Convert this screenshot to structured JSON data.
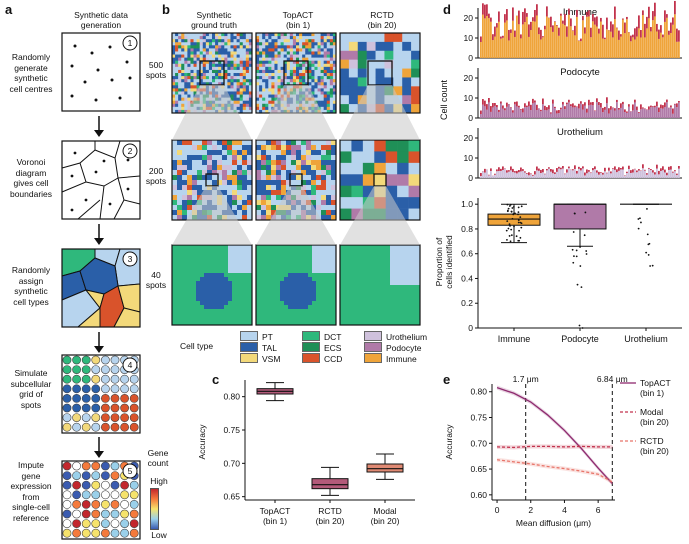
{
  "panels": {
    "a": "a",
    "b": "b",
    "c": "c",
    "d": "d",
    "e": "e"
  },
  "colors": {
    "PT": "#b7d4ee",
    "TAL": "#2a5fa8",
    "VSM": "#f3d97a",
    "DCT": "#2fb87c",
    "ECS": "#1f8f57",
    "CCD": "#d9532b",
    "Urothelium": "#cfc1dc",
    "Podocyte": "#b07aa8",
    "Immune": "#efa43a"
  },
  "a": {
    "header": "Synthetic data\ngeneration",
    "steps": [
      {
        "num": "1",
        "label": "Randomly\ngenerate\nsynthetic\ncell centres"
      },
      {
        "num": "2",
        "label": "Voronoi\ndiagram\ngives cell\nboundaries"
      },
      {
        "num": "3",
        "label": "Randomly\nassign\nsynthetic\ncell types"
      },
      {
        "num": "4",
        "label": "Simulate\nsubcellular\ngrid of\nspots"
      },
      {
        "num": "5",
        "label": "Impute\ngene\nexpression\nfrom\nsingle-cell\nreference"
      }
    ],
    "gene_count_label": "Gene\ncount",
    "high": "High",
    "low": "Low"
  },
  "b": {
    "columns": [
      "Synthetic\nground truth",
      "TopACT\n(bin 1)",
      "RCTD\n(bin 20)"
    ],
    "rows": [
      "500\nspots",
      "200\nspots",
      "40\nspots"
    ],
    "legend_title": "Cell type",
    "legend": [
      {
        "name": "PT",
        "color": "#b7d4ee"
      },
      {
        "name": "TAL",
        "color": "#2a5fa8"
      },
      {
        "name": "VSM",
        "color": "#f3d97a"
      },
      {
        "name": "DCT",
        "color": "#2fb87c"
      },
      {
        "name": "ECS",
        "color": "#1f8f57"
      },
      {
        "name": "CCD",
        "color": "#d9532b"
      },
      {
        "name": "Urothelium",
        "color": "#cfc1dc"
      },
      {
        "name": "Podocyte",
        "color": "#b07aa8"
      },
      {
        "name": "Immune",
        "color": "#efa43a"
      }
    ]
  },
  "chart_data": [
    {
      "id": "c",
      "type": "box",
      "ylabel": "Accuracy",
      "ylim": [
        0.645,
        0.825
      ],
      "yticks": [
        "0.80",
        "0.75",
        "0.70",
        "0.65"
      ],
      "categories": [
        "TopACT\n(bin 1)",
        "RCTD\n(bin 20)",
        "Modal\n(bin 20)"
      ],
      "boxes": [
        {
          "min": 0.794,
          "q1": 0.804,
          "median": 0.808,
          "q3": 0.812,
          "max": 0.821,
          "color": "#b35a7a"
        },
        {
          "min": 0.652,
          "q1": 0.662,
          "median": 0.668,
          "q3": 0.677,
          "max": 0.694,
          "color": "#b35a7a"
        },
        {
          "min": 0.676,
          "q1": 0.687,
          "median": 0.692,
          "q3": 0.699,
          "max": 0.714,
          "color": "#e08a74"
        }
      ]
    },
    {
      "id": "d-hist",
      "type": "bar",
      "ylabel": "Cell count",
      "series": [
        {
          "name": "Immune",
          "ylim": [
            0,
            25
          ],
          "yticks": [
            "20",
            "10",
            "0"
          ]
        },
        {
          "name": "Podocyte",
          "ylim": [
            0,
            25
          ],
          "yticks": [
            "20",
            "10",
            "0"
          ]
        },
        {
          "name": "Urothelium",
          "ylim": [
            0,
            25
          ],
          "yticks": [
            "20",
            "10",
            "0"
          ]
        }
      ]
    },
    {
      "id": "d-box",
      "type": "box",
      "ylabel": "Proportion of\ncells identified",
      "ylim": [
        0,
        1.05
      ],
      "yticks": [
        "1.0",
        "0.8",
        "0.6",
        "0.4",
        "0.2",
        "0"
      ],
      "categories": [
        "Immune",
        "Podocyte",
        "Urothelium"
      ],
      "boxes": [
        {
          "min": 0.69,
          "q1": 0.83,
          "median": 0.88,
          "q3": 0.92,
          "max": 1.0,
          "color": "#efa43a"
        },
        {
          "min": 0.66,
          "q1": 0.8,
          "median": 1.0,
          "q3": 1.0,
          "max": 1.0,
          "color": "#b07aa8"
        },
        {
          "min": 1.0,
          "q1": 1.0,
          "median": 1.0,
          "q3": 1.0,
          "max": 1.0,
          "color": "#cfc1dc"
        }
      ]
    },
    {
      "id": "e",
      "type": "line",
      "xlabel": "Mean diffusion (μm)",
      "ylabel": "Accuracy",
      "xlim": [
        -0.3,
        7.0
      ],
      "ylim": [
        0.59,
        0.815
      ],
      "xticks": [
        "0",
        "2",
        "4",
        "6"
      ],
      "yticks": [
        "0.80",
        "0.75",
        "0.70",
        "0.65",
        "0.60"
      ],
      "vlines": [
        {
          "x": 1.7,
          "label": "1.7 μm"
        },
        {
          "x": 6.84,
          "label": "6.84 μm"
        }
      ],
      "series": [
        {
          "name": "TopACT\n(bin 1)",
          "color": "#8e2a6e",
          "dash": "",
          "x": [
            0,
            1,
            2,
            3,
            4,
            5,
            6,
            6.84
          ],
          "y": [
            0.808,
            0.797,
            0.78,
            0.755,
            0.725,
            0.69,
            0.652,
            0.622
          ]
        },
        {
          "name": "Modal\n(bin 20)",
          "color": "#c2334d",
          "dash": "3,2",
          "x": [
            0,
            1,
            2,
            3,
            4,
            5,
            6,
            6.84
          ],
          "y": [
            0.693,
            0.692,
            0.694,
            0.694,
            0.693,
            0.694,
            0.693,
            0.693
          ]
        },
        {
          "name": "RCTD\n(bin 20)",
          "color": "#e8756a",
          "dash": "3,2",
          "x": [
            0,
            1,
            2,
            3,
            4,
            5,
            6,
            6.84
          ],
          "y": [
            0.668,
            0.664,
            0.66,
            0.655,
            0.651,
            0.646,
            0.64,
            0.625
          ]
        }
      ]
    }
  ]
}
